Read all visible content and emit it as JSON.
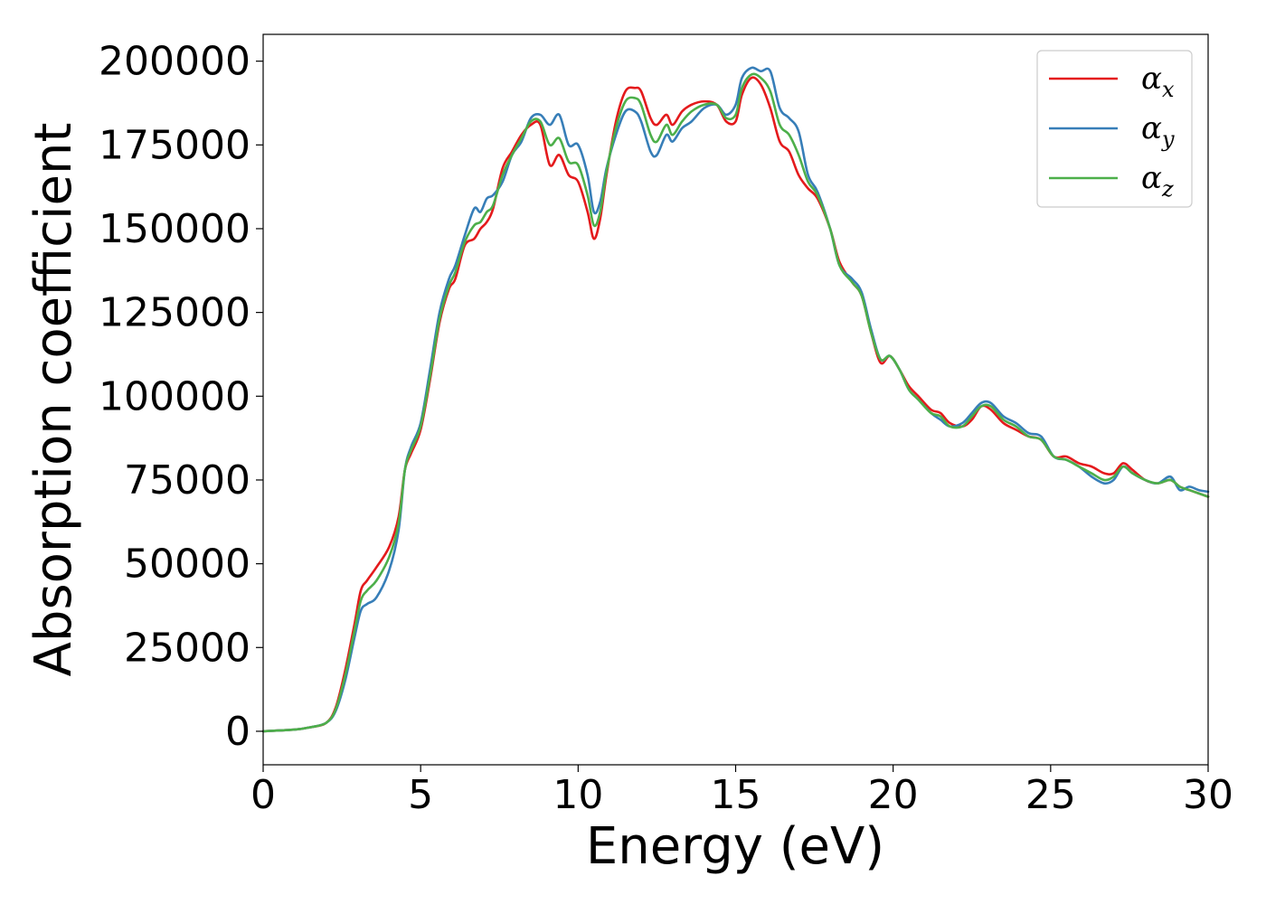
{
  "chart_data": {
    "type": "line",
    "xlabel": "Energy (eV)",
    "ylabel": "Absorption coefficient",
    "xlim": [
      0,
      30
    ],
    "ylim": [
      -10000,
      208000
    ],
    "xticks": [
      0,
      5,
      10,
      15,
      20,
      25,
      30
    ],
    "yticks": [
      0,
      25000,
      50000,
      75000,
      100000,
      125000,
      150000,
      175000,
      200000
    ],
    "grid": false,
    "legend_position": "top-right",
    "series": [
      {
        "name": "α_x",
        "symbol": "α",
        "subscript": "x",
        "color": "#e41a1c",
        "x": [
          0,
          1,
          1.5,
          2,
          2.3,
          2.6,
          2.9,
          3.1,
          3.3,
          3.6,
          4.0,
          4.3,
          4.5,
          4.7,
          5.0,
          5.3,
          5.6,
          5.9,
          6.1,
          6.4,
          6.7,
          6.9,
          7.1,
          7.3,
          7.6,
          7.9,
          8.2,
          8.5,
          8.8,
          9.1,
          9.4,
          9.7,
          10.0,
          10.3,
          10.5,
          10.7,
          10.9,
          11.2,
          11.5,
          11.8,
          12.0,
          12.3,
          12.5,
          12.8,
          13.0,
          13.3,
          13.6,
          14.0,
          14.4,
          14.7,
          15.0,
          15.2,
          15.5,
          15.8,
          16.1,
          16.4,
          16.7,
          17.0,
          17.3,
          17.6,
          18.0,
          18.3,
          18.7,
          19.0,
          19.3,
          19.6,
          19.9,
          20.2,
          20.5,
          20.8,
          21.2,
          21.5,
          21.8,
          22.2,
          22.5,
          22.8,
          23.1,
          23.5,
          23.9,
          24.3,
          24.7,
          25.1,
          25.5,
          25.9,
          26.3,
          26.7,
          27.0,
          27.3,
          27.6,
          28.0,
          28.4,
          28.8,
          29.1,
          29.4,
          29.7,
          30.0
        ],
        "y": [
          0,
          500,
          1200,
          2500,
          7000,
          18000,
          32000,
          42000,
          45000,
          49000,
          55000,
          64000,
          78000,
          83000,
          90000,
          105000,
          122000,
          132000,
          135000,
          145000,
          147000,
          150000,
          152000,
          156000,
          168000,
          173000,
          178000,
          181000,
          181000,
          169000,
          172000,
          166000,
          164000,
          155000,
          147000,
          153000,
          166000,
          182000,
          191000,
          192000,
          191000,
          183000,
          181000,
          184000,
          181000,
          185000,
          187000,
          188000,
          187000,
          182000,
          182000,
          190000,
          195000,
          193000,
          186000,
          176000,
          173000,
          166000,
          162000,
          159000,
          150000,
          140000,
          134000,
          130000,
          119000,
          110000,
          112000,
          108000,
          103000,
          100000,
          96000,
          95000,
          92000,
          91000,
          93000,
          97000,
          96000,
          92000,
          90000,
          88000,
          87000,
          82000,
          82000,
          80000,
          79000,
          77000,
          77000,
          80000,
          78000,
          75000,
          74000,
          75000,
          73000,
          72000,
          71000,
          70000
        ]
      },
      {
        "name": "α_y",
        "symbol": "α",
        "subscript": "y",
        "color": "#377eb8",
        "x": [
          0,
          1,
          1.5,
          2,
          2.3,
          2.6,
          2.9,
          3.1,
          3.3,
          3.6,
          4.0,
          4.3,
          4.5,
          4.7,
          5.0,
          5.3,
          5.6,
          5.9,
          6.1,
          6.4,
          6.7,
          6.9,
          7.1,
          7.3,
          7.6,
          7.9,
          8.2,
          8.5,
          8.8,
          9.1,
          9.4,
          9.7,
          10.0,
          10.3,
          10.5,
          10.7,
          10.9,
          11.2,
          11.5,
          11.8,
          12.0,
          12.3,
          12.5,
          12.8,
          13.0,
          13.3,
          13.6,
          14.0,
          14.4,
          14.7,
          15.0,
          15.2,
          15.5,
          15.8,
          16.1,
          16.4,
          16.7,
          17.0,
          17.3,
          17.6,
          18.0,
          18.3,
          18.7,
          19.0,
          19.3,
          19.6,
          19.9,
          20.2,
          20.5,
          20.8,
          21.2,
          21.5,
          21.8,
          22.2,
          22.5,
          22.8,
          23.1,
          23.5,
          23.9,
          24.3,
          24.7,
          25.1,
          25.5,
          25.9,
          26.3,
          26.7,
          27.0,
          27.3,
          27.6,
          28.0,
          28.4,
          28.8,
          29.1,
          29.4,
          29.7,
          30.0
        ],
        "y": [
          0,
          500,
          1200,
          2500,
          6000,
          15000,
          28000,
          36000,
          38000,
          40000,
          48000,
          60000,
          78000,
          85000,
          92000,
          108000,
          125000,
          135000,
          139000,
          148000,
          156000,
          155000,
          159000,
          160000,
          164000,
          172000,
          176000,
          183000,
          184000,
          181000,
          184000,
          175000,
          175000,
          166000,
          155000,
          158000,
          168000,
          178000,
          185000,
          185000,
          182000,
          173000,
          172000,
          178000,
          176000,
          180000,
          182000,
          186000,
          187000,
          184000,
          187000,
          195000,
          198000,
          197000,
          197000,
          186000,
          183000,
          179000,
          166000,
          161000,
          150000,
          139000,
          135000,
          131000,
          120000,
          111000,
          112000,
          108000,
          102000,
          99000,
          95000,
          93000,
          91000,
          92000,
          95000,
          98000,
          98000,
          94000,
          92000,
          89000,
          88000,
          82000,
          81000,
          79000,
          76000,
          74000,
          75000,
          79000,
          77000,
          75000,
          74000,
          76000,
          72000,
          73000,
          72000,
          71500
        ]
      },
      {
        "name": "α_z",
        "symbol": "α",
        "subscript": "z",
        "color": "#4daf4a",
        "x": [
          0,
          1,
          1.5,
          2,
          2.3,
          2.6,
          2.9,
          3.1,
          3.3,
          3.6,
          4.0,
          4.3,
          4.5,
          4.7,
          5.0,
          5.3,
          5.6,
          5.9,
          6.1,
          6.4,
          6.7,
          6.9,
          7.1,
          7.3,
          7.6,
          7.9,
          8.2,
          8.5,
          8.8,
          9.1,
          9.4,
          9.7,
          10.0,
          10.3,
          10.5,
          10.7,
          10.9,
          11.2,
          11.5,
          11.8,
          12.0,
          12.3,
          12.5,
          12.8,
          13.0,
          13.3,
          13.6,
          14.0,
          14.4,
          14.7,
          15.0,
          15.2,
          15.5,
          15.8,
          16.1,
          16.4,
          16.7,
          17.0,
          17.3,
          17.6,
          18.0,
          18.3,
          18.7,
          19.0,
          19.3,
          19.6,
          19.9,
          20.2,
          20.5,
          20.8,
          21.2,
          21.5,
          21.8,
          22.2,
          22.5,
          22.8,
          23.1,
          23.5,
          23.9,
          24.3,
          24.7,
          25.1,
          25.5,
          25.9,
          26.3,
          26.7,
          27.0,
          27.3,
          27.6,
          28.0,
          28.4,
          28.8,
          29.1,
          29.4,
          29.7,
          30.0
        ],
        "y": [
          0,
          500,
          1200,
          2500,
          6500,
          16500,
          30000,
          39000,
          42000,
          45000,
          52000,
          62000,
          78000,
          84000,
          91000,
          106000,
          123000,
          133000,
          137000,
          146000,
          151000,
          152000,
          155000,
          157000,
          166000,
          172000,
          177000,
          182000,
          182000,
          175000,
          177000,
          170000,
          169000,
          160000,
          151000,
          155000,
          167000,
          180000,
          188000,
          189000,
          187000,
          178000,
          176000,
          181000,
          178000,
          182000,
          185000,
          187000,
          187000,
          183000,
          184000,
          192000,
          196000,
          195000,
          191000,
          181000,
          178000,
          172000,
          164000,
          160000,
          150000,
          139000,
          134000,
          130000,
          119000,
          111000,
          112000,
          108000,
          102000,
          99000,
          95000,
          94000,
          91000,
          91000,
          94000,
          97000,
          97000,
          93000,
          91000,
          88000,
          87000,
          82000,
          81000,
          79000,
          77000,
          75000,
          76000,
          79000,
          77000,
          75000,
          74000,
          75000,
          73000,
          72000,
          71000,
          70000
        ]
      }
    ]
  }
}
